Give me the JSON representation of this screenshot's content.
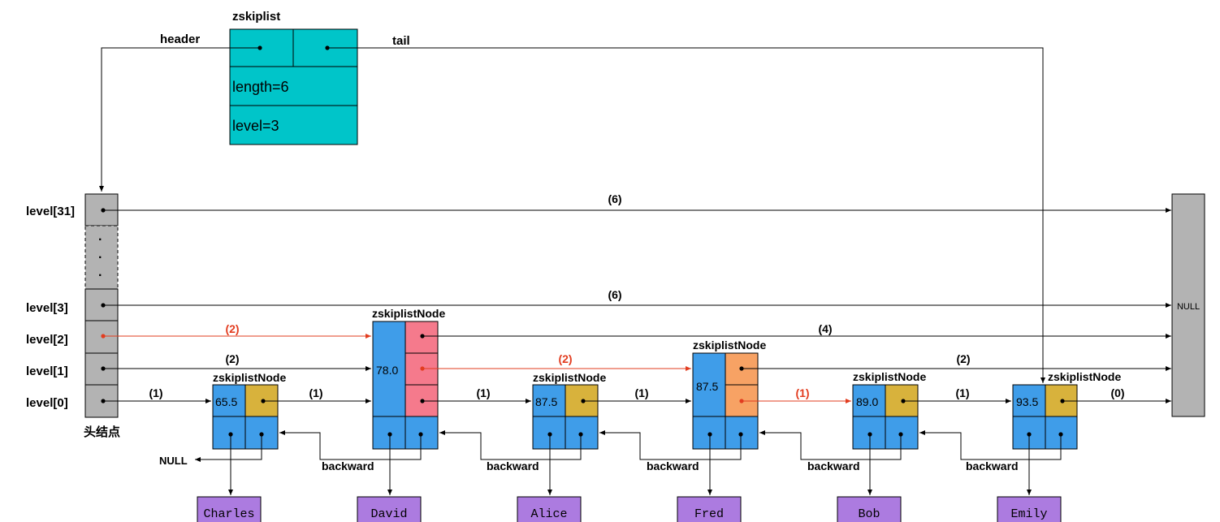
{
  "colors": {
    "teal": "#00c5c9",
    "gray": "#b3b3b3",
    "blue": "#3f9de9",
    "gold": "#d8b23c",
    "pink": "#f57a8c",
    "orange": "#f7a264",
    "purple": "#ac7be0",
    "red": "#e23c1f",
    "black": "#000000"
  },
  "zskiplist": {
    "title": "zskiplist",
    "header_label": "header",
    "tail_label": "tail",
    "length_text": "length=6",
    "level_text": "level=3"
  },
  "head_node": {
    "caption": "头结点",
    "level_labels": {
      "l31": "level[31]",
      "l3": "level[3]",
      "l2": "level[2]",
      "l1": "level[1]",
      "l0": "level[0]"
    },
    "dots": "·"
  },
  "null_box_label": "NULL",
  "null_backward_label": "NULL",
  "node_title": "zskiplistNode",
  "backward_label": "backward",
  "nodes": [
    {
      "score": "65.5",
      "member": "Charles"
    },
    {
      "score": "78.0",
      "member": "David"
    },
    {
      "score": "87.5",
      "member": "Alice"
    },
    {
      "score": "87.5",
      "member": "Fred"
    },
    {
      "score": "89.0",
      "member": "Bob"
    },
    {
      "score": "93.5",
      "member": "Emily"
    }
  ],
  "spans": {
    "l31": "(6)",
    "l3": "(6)",
    "l2_a": "(2)",
    "l2_b": "(4)",
    "l1_a": "(2)",
    "l1_b": "(2)",
    "l1_c": "(2)",
    "l0_a": "(1)",
    "l0_b": "(1)",
    "l0_c": "(1)",
    "l0_d": "(1)",
    "l0_e": "(1)",
    "l0_f": "(1)",
    "l0_g": "(0)"
  }
}
